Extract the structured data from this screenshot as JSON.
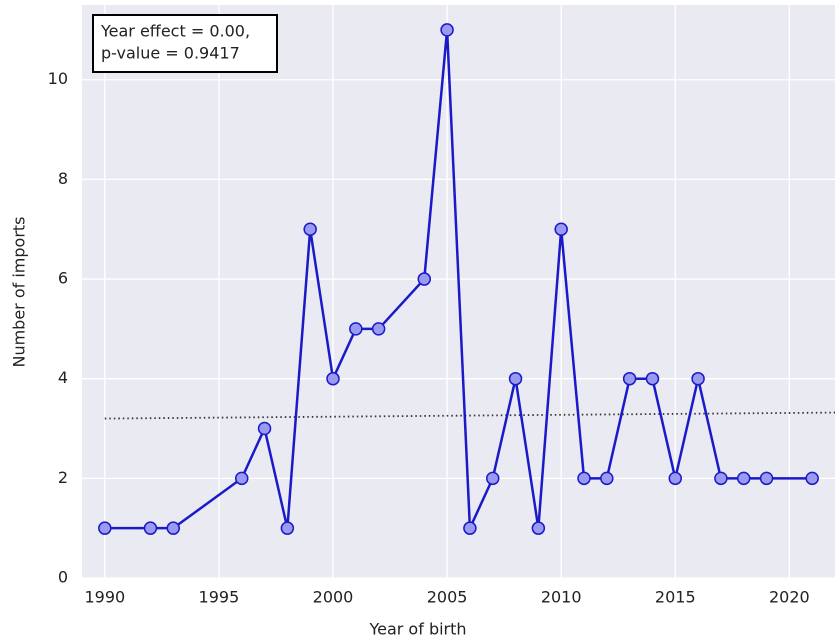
{
  "chart_data": {
    "type": "line",
    "x": [
      1990,
      1992,
      1993,
      1996,
      1997,
      1998,
      1999,
      2000,
      2001,
      2002,
      2004,
      2005,
      2006,
      2007,
      2008,
      2009,
      2010,
      2011,
      2012,
      2013,
      2014,
      2015,
      2016,
      2017,
      2018,
      2019,
      2021
    ],
    "values": [
      1,
      1,
      1,
      2,
      3,
      1,
      7,
      4,
      5,
      5,
      6,
      11,
      1,
      2,
      4,
      1,
      7,
      2,
      2,
      4,
      4,
      2,
      4,
      2,
      2,
      2,
      2
    ],
    "color": "#1a1ac8",
    "marker_color": "#9a9af0",
    "trend": {
      "x": [
        1990,
        2022
      ],
      "values": [
        3.2,
        3.32
      ],
      "color": "#333333"
    },
    "annotation": [
      "Year effect = 0.00,",
      "p-value = 0.9417"
    ],
    "xlabel": "Year of birth",
    "ylabel": "Number of imports",
    "xlim": [
      1989,
      2022
    ],
    "ylim": [
      0,
      11.5
    ],
    "xticks": [
      1990,
      1995,
      2000,
      2005,
      2010,
      2015,
      2020
    ],
    "yticks": [
      0,
      2,
      4,
      6,
      8,
      10
    ],
    "grid": true
  }
}
